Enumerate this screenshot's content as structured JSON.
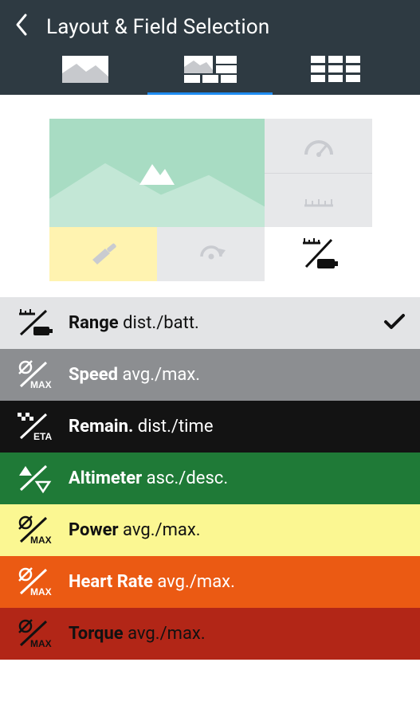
{
  "header": {
    "title": "Layout & Field Selection"
  },
  "tabs": {
    "active_index": 1
  },
  "preview": {
    "big_bg": "#a8dcc3",
    "big_wave": "#c3e7d6",
    "yellow": "#fff3b0",
    "grey": "#e7e8ea",
    "white": "#ffffff",
    "icon_light": "#c9cbd0",
    "icon_dark": "#111111"
  },
  "rows": [
    {
      "title": "Range",
      "sub": "dist./batt.",
      "bg": "#e3e4e6",
      "fg": "#111111",
      "checked": true
    },
    {
      "title": "Speed",
      "sub": "avg./max.",
      "bg": "#8c8e91",
      "fg": "#ffffff",
      "checked": false
    },
    {
      "title": "Remain.",
      "sub": "dist./time",
      "bg": "#131313",
      "fg": "#ffffff",
      "checked": false
    },
    {
      "title": "Altimeter",
      "sub": "asc./desc.",
      "bg": "#1f7a37",
      "fg": "#ffffff",
      "checked": false
    },
    {
      "title": "Power",
      "sub": "avg./max.",
      "bg": "#fbf792",
      "fg": "#111111",
      "checked": false
    },
    {
      "title": "Heart Rate",
      "sub": "avg./max.",
      "bg": "#eb5a13",
      "fg": "#ffffff",
      "checked": false
    },
    {
      "title": "Torque",
      "sub": "avg./max.",
      "bg": "#b22617",
      "fg": "#111111",
      "checked": false
    }
  ]
}
